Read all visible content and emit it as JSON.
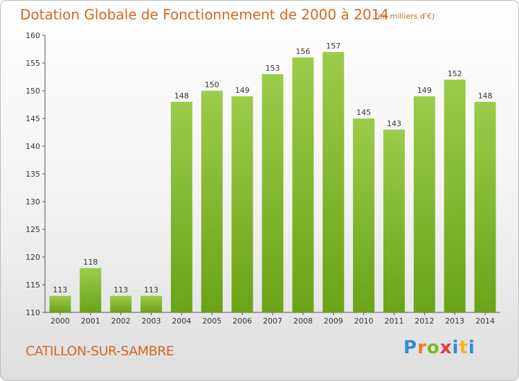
{
  "chart_data": {
    "type": "bar",
    "title": "Dotation Globale de Fonctionnement de 2000 à 2014",
    "subtitle": "(en milliers d'€)",
    "categories": [
      "2000",
      "2001",
      "2002",
      "2003",
      "2004",
      "2005",
      "2006",
      "2007",
      "2008",
      "2009",
      "2010",
      "2011",
      "2012",
      "2013",
      "2014"
    ],
    "values": [
      113,
      118,
      113,
      113,
      148,
      150,
      149,
      153,
      156,
      157,
      145,
      143,
      149,
      152,
      148
    ],
    "ylim": [
      110,
      160
    ],
    "yticks": [
      110,
      115,
      120,
      125,
      130,
      135,
      140,
      145,
      150,
      155,
      160
    ],
    "grid": false,
    "bar_color": "#82bf2a"
  },
  "footer": {
    "commune": "CATILLON-SUR-SAMBRE",
    "logo": "Proxiti"
  }
}
